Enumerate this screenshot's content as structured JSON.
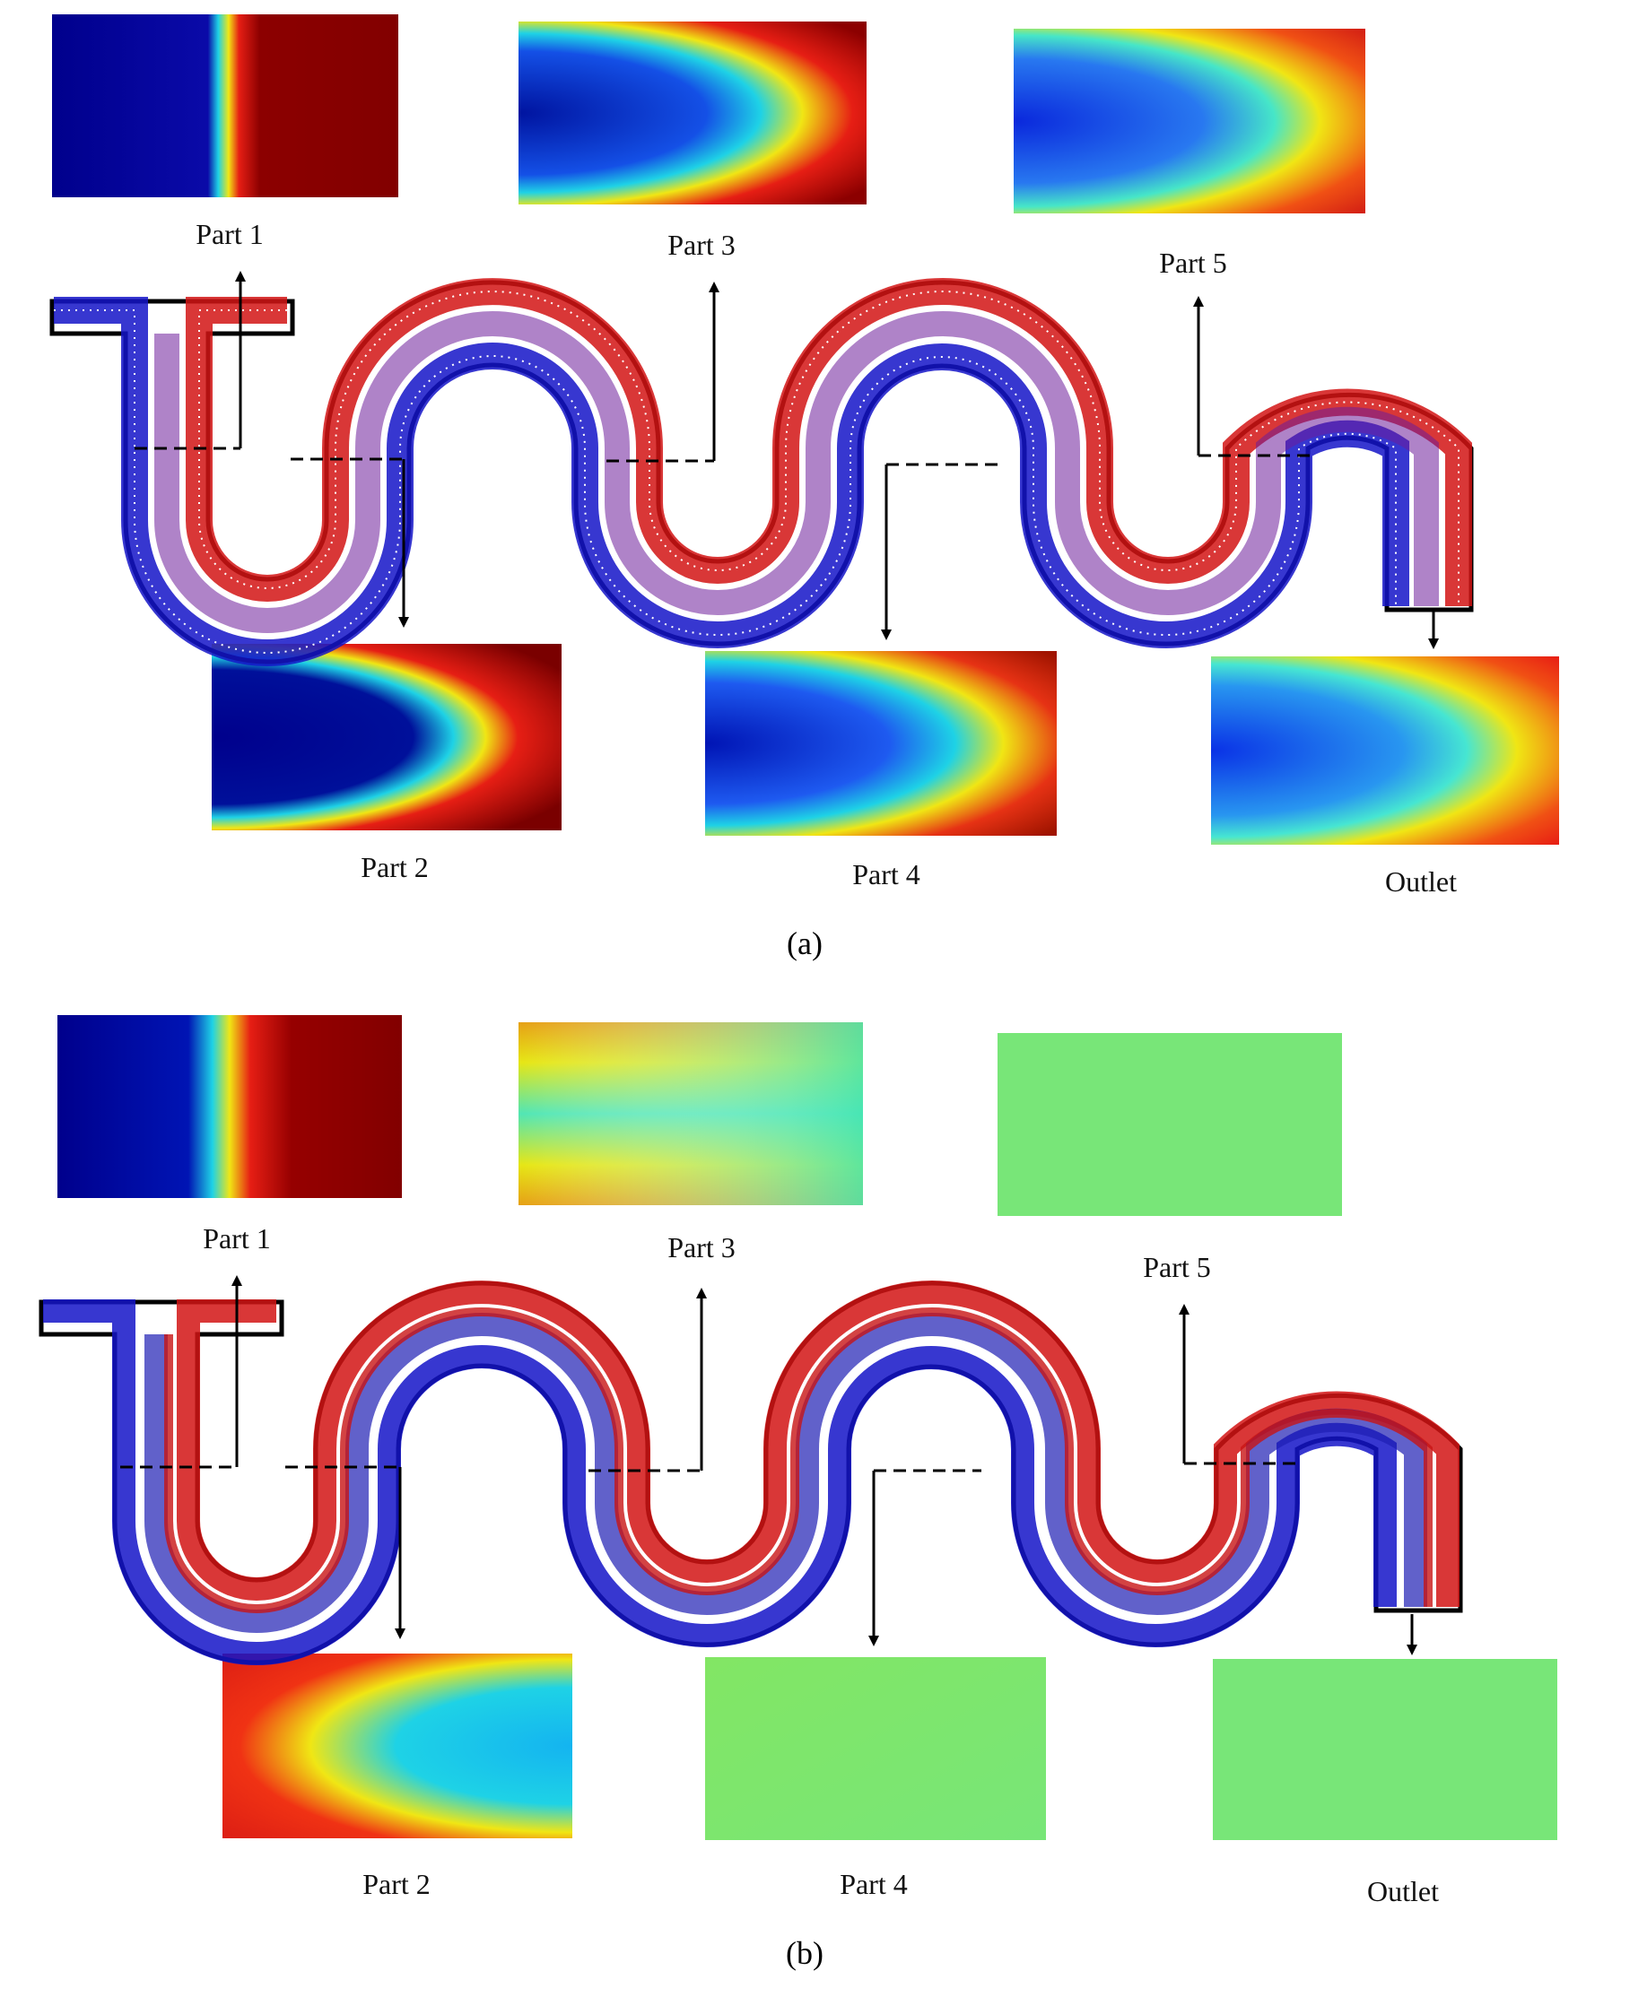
{
  "figure": {
    "panel_a": {
      "caption": "(a)",
      "sections": [
        {
          "label": "Part 1"
        },
        {
          "label": "Part 2"
        },
        {
          "label": "Part 3"
        },
        {
          "label": "Part 4"
        },
        {
          "label": "Part 5"
        },
        {
          "label": "Outlet"
        }
      ]
    },
    "panel_b": {
      "caption": "(b)",
      "sections": [
        {
          "label": "Part 1"
        },
        {
          "label": "Part 2"
        },
        {
          "label": "Part 3"
        },
        {
          "label": "Part 4"
        },
        {
          "label": "Part 5"
        },
        {
          "label": "Outlet"
        }
      ]
    }
  },
  "colors": {
    "fluid_a": "#1414c8",
    "fluid_b": "#d21414",
    "channel_wall": "#000000",
    "map_dark_blue": "#00008c",
    "map_blue": "#0a2ae6",
    "map_cyan": "#1ed2e6",
    "map_yellow": "#f0e614",
    "map_red": "#e61e14",
    "map_dark_red": "#820000",
    "map_green": "#78e678",
    "map_teal_green": "#46e6b4"
  }
}
